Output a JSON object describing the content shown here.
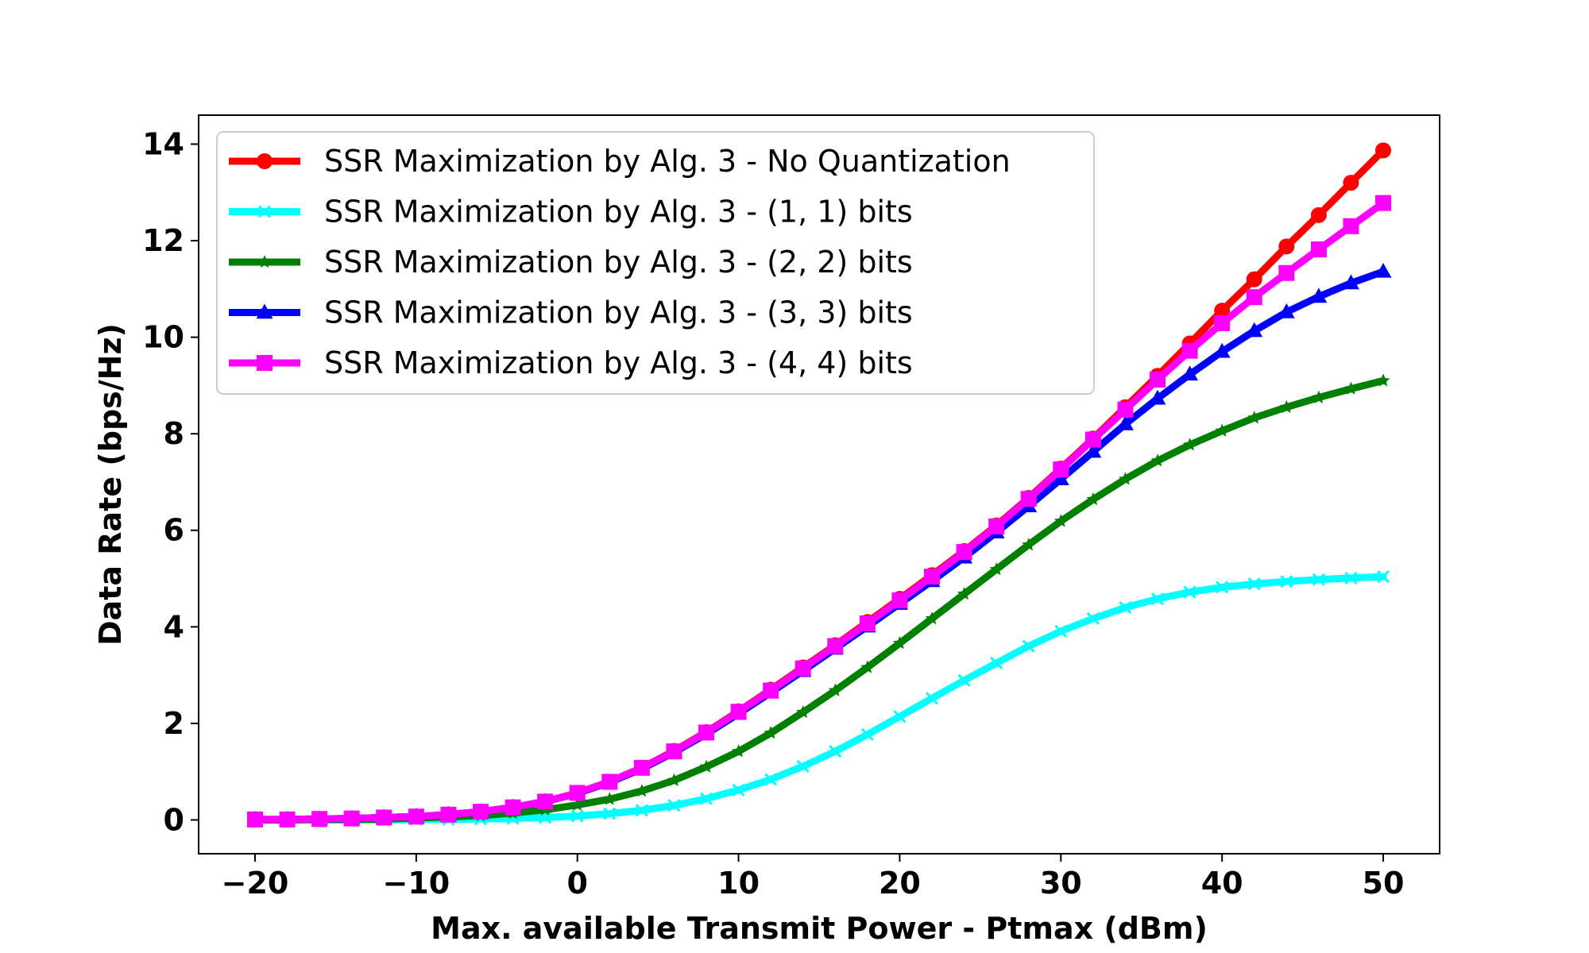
{
  "chart_data": {
    "type": "line",
    "title": "",
    "xlabel": "Max. available Transmit Power - Ptmax (dBm)",
    "ylabel": "Data Rate (bps/Hz)",
    "xlim": [
      -23.5,
      53.5
    ],
    "ylim": [
      -0.7,
      14.6
    ],
    "xticks": [
      -20,
      -10,
      0,
      10,
      20,
      30,
      40,
      50
    ],
    "xtick_labels": [
      "−20",
      "−10",
      "0",
      "10",
      "20",
      "30",
      "40",
      "50"
    ],
    "yticks": [
      0,
      2,
      4,
      6,
      8,
      10,
      12,
      14
    ],
    "ytick_labels": [
      "0",
      "2",
      "4",
      "6",
      "8",
      "10",
      "12",
      "14"
    ],
    "grid": false,
    "legend_position": "top-left",
    "x": [
      -20,
      -18,
      -16,
      -14,
      -12,
      -10,
      -8,
      -6,
      -4,
      -2,
      0,
      2,
      4,
      6,
      8,
      10,
      12,
      14,
      16,
      18,
      20,
      22,
      24,
      26,
      28,
      30,
      32,
      34,
      36,
      38,
      40,
      42,
      44,
      46,
      48,
      50
    ],
    "series": [
      {
        "name": "SSR Maximization by Alg. 3 - No Quantization",
        "color": "#ff0000",
        "marker": "circle",
        "values": [
          0.01,
          0.01,
          0.02,
          0.03,
          0.05,
          0.07,
          0.11,
          0.17,
          0.26,
          0.38,
          0.56,
          0.79,
          1.08,
          1.43,
          1.82,
          2.25,
          2.7,
          3.16,
          3.62,
          4.1,
          4.58,
          5.07,
          5.57,
          6.1,
          6.67,
          7.28,
          7.9,
          8.55,
          9.2,
          9.87,
          10.55,
          11.2,
          11.88,
          12.53,
          13.2,
          13.87
        ]
      },
      {
        "name": "SSR Maximization by Alg. 3 - (1, 1) bits",
        "color": "#00ffff",
        "marker": "x",
        "values": [
          0.0,
          0.0,
          0.0,
          0.0,
          0.0,
          0.01,
          0.01,
          0.02,
          0.03,
          0.05,
          0.08,
          0.13,
          0.2,
          0.3,
          0.44,
          0.62,
          0.84,
          1.11,
          1.42,
          1.77,
          2.14,
          2.52,
          2.89,
          3.25,
          3.6,
          3.91,
          4.17,
          4.4,
          4.58,
          4.72,
          4.82,
          4.89,
          4.94,
          4.98,
          5.01,
          5.04
        ]
      },
      {
        "name": "SSR Maximization by Alg. 3 - (2, 2) bits",
        "color": "#008000",
        "marker": "star",
        "values": [
          0.0,
          0.0,
          0.01,
          0.01,
          0.02,
          0.04,
          0.06,
          0.09,
          0.14,
          0.21,
          0.31,
          0.43,
          0.6,
          0.82,
          1.1,
          1.42,
          1.8,
          2.23,
          2.68,
          3.16,
          3.66,
          4.17,
          4.68,
          5.19,
          5.7,
          6.19,
          6.64,
          7.06,
          7.44,
          7.77,
          8.06,
          8.33,
          8.55,
          8.75,
          8.93,
          9.1
        ]
      },
      {
        "name": "SSR Maximization by Alg. 3 - (3, 3) bits",
        "color": "#0000ff",
        "marker": "triangle",
        "values": [
          0.01,
          0.01,
          0.02,
          0.03,
          0.05,
          0.07,
          0.11,
          0.17,
          0.26,
          0.38,
          0.55,
          0.78,
          1.06,
          1.4,
          1.78,
          2.2,
          2.64,
          3.09,
          3.55,
          4.01,
          4.48,
          4.95,
          5.44,
          5.96,
          6.5,
          7.06,
          7.63,
          8.2,
          8.73,
          9.23,
          9.7,
          10.13,
          10.52,
          10.84,
          11.12,
          11.36
        ]
      },
      {
        "name": "SSR Maximization by Alg. 3 - (4, 4) bits",
        "color": "#ff00ff",
        "marker": "square",
        "values": [
          0.01,
          0.01,
          0.02,
          0.03,
          0.05,
          0.07,
          0.11,
          0.17,
          0.26,
          0.38,
          0.56,
          0.79,
          1.08,
          1.42,
          1.81,
          2.24,
          2.68,
          3.14,
          3.6,
          4.07,
          4.55,
          5.04,
          5.55,
          6.08,
          6.65,
          7.26,
          7.88,
          8.5,
          9.12,
          9.72,
          10.29,
          10.83,
          11.33,
          11.82,
          12.3,
          12.78
        ]
      }
    ]
  }
}
